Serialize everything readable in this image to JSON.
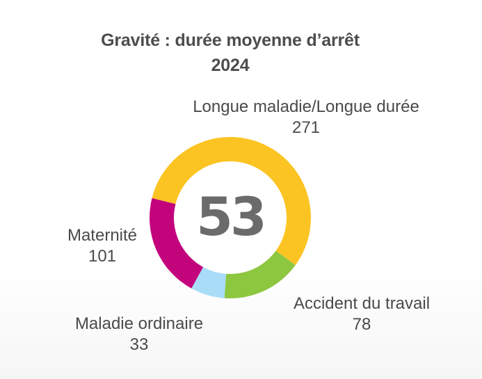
{
  "header": {
    "title_line1": "Gravité : durée moyenne d’arrêt",
    "title_line2": "2024"
  },
  "center": {
    "value": "53"
  },
  "labels": {
    "longue": {
      "name": "Longue maladie/Longue durée",
      "value": "271"
    },
    "maternite": {
      "name": "Maternité",
      "value": "101"
    },
    "ordinaire": {
      "name": "Maladie ordinaire",
      "value": "33"
    },
    "accident": {
      "name": "Accident du travail",
      "value": "78"
    }
  },
  "colors": {
    "longue": "#fcc423",
    "accident": "#8dc63f",
    "ordinaire": "#a8dcf7",
    "maternite": "#c3037c"
  },
  "chart_data": {
    "type": "pie",
    "variant": "donut",
    "title": "Gravité : durée moyenne d’arrêt 2024",
    "center_label": "53",
    "categories": [
      "Longue maladie/Longue durée",
      "Accident du travail",
      "Maladie ordinaire",
      "Maternité"
    ],
    "values": [
      271,
      78,
      33,
      101
    ],
    "colors": [
      "#fcc423",
      "#8dc63f",
      "#a8dcf7",
      "#c3037c"
    ],
    "start_angle_deg": 284,
    "direction": "clockwise",
    "legend": "none (direct labels)"
  }
}
